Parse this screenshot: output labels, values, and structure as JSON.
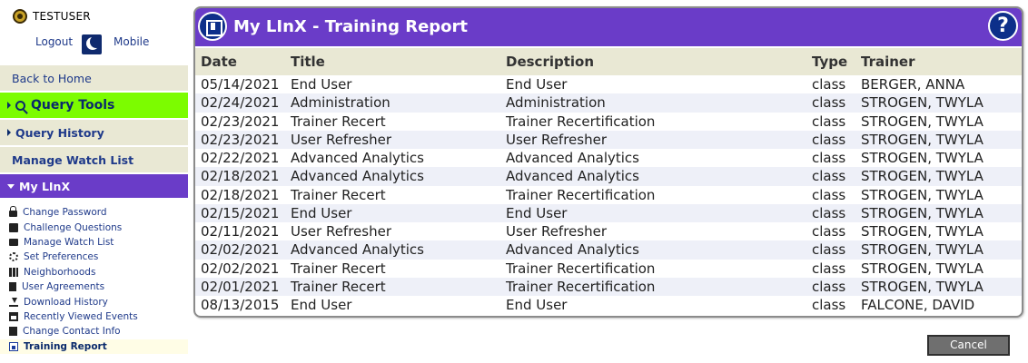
{
  "user": {
    "name": "TESTUSER",
    "logout_label": "Logout",
    "mobile_label": "Mobile"
  },
  "nav": {
    "back_home": "Back to Home",
    "query_tools": "Query Tools",
    "query_history": "Query History",
    "manage_watch_list": "Manage Watch List",
    "my_linx": "My LInX"
  },
  "submenu": [
    {
      "label": "Change Password",
      "icon": "lock-icon"
    },
    {
      "label": "Challenge Questions",
      "icon": "question-lock-icon"
    },
    {
      "label": "Manage Watch List",
      "icon": "folder-open-icon"
    },
    {
      "label": "Set Preferences",
      "icon": "gears-icon"
    },
    {
      "label": "Neighborhoods",
      "icon": "map-icon"
    },
    {
      "label": "User Agreements",
      "icon": "document-icon"
    },
    {
      "label": "Download History",
      "icon": "download-icon"
    },
    {
      "label": "Recently Viewed Events",
      "icon": "calendar-icon"
    },
    {
      "label": "Change Contact Info",
      "icon": "id-card-icon"
    },
    {
      "label": "Training Report",
      "icon": "report-icon",
      "active": true
    }
  ],
  "panel": {
    "title": "My LInX - Training Report"
  },
  "table": {
    "columns": [
      "Date",
      "Title",
      "Description",
      "Type",
      "Trainer"
    ],
    "rows": [
      [
        "05/14/2021",
        "End User",
        "End User",
        "class",
        "BERGER, ANNA"
      ],
      [
        "02/24/2021",
        "Administration",
        "Administration",
        "class",
        "STROGEN, TWYLA"
      ],
      [
        "02/23/2021",
        "Trainer Recert",
        "Trainer Recertification",
        "class",
        "STROGEN, TWYLA"
      ],
      [
        "02/23/2021",
        "User Refresher",
        "User Refresher",
        "class",
        "STROGEN, TWYLA"
      ],
      [
        "02/22/2021",
        "Advanced Analytics",
        "Advanced Analytics",
        "class",
        "STROGEN, TWYLA"
      ],
      [
        "02/18/2021",
        "Advanced Analytics",
        "Advanced Analytics",
        "class",
        "STROGEN, TWYLA"
      ],
      [
        "02/18/2021",
        "Trainer Recert",
        "Trainer Recertification",
        "class",
        "STROGEN, TWYLA"
      ],
      [
        "02/15/2021",
        "End User",
        "End User",
        "class",
        "STROGEN, TWYLA"
      ],
      [
        "02/11/2021",
        "User Refresher",
        "User Refresher",
        "class",
        "STROGEN, TWYLA"
      ],
      [
        "02/02/2021",
        "Advanced Analytics",
        "Advanced Analytics",
        "class",
        "STROGEN, TWYLA"
      ],
      [
        "02/02/2021",
        "Trainer Recert",
        "Trainer Recertification",
        "class",
        "STROGEN, TWYLA"
      ],
      [
        "02/01/2021",
        "Trainer Recert",
        "Trainer Recertification",
        "class",
        "STROGEN, TWYLA"
      ],
      [
        "08/13/2015",
        "End User",
        "End User",
        "class",
        "FALCONE, DAVID"
      ]
    ]
  },
  "cancel_label": "Cancel",
  "colors": {
    "brand_purple": "#6a3cc8",
    "query_green": "#7cfc00",
    "nav_beige": "#e9e8d4",
    "icon_navy": "#0d2f8a"
  }
}
